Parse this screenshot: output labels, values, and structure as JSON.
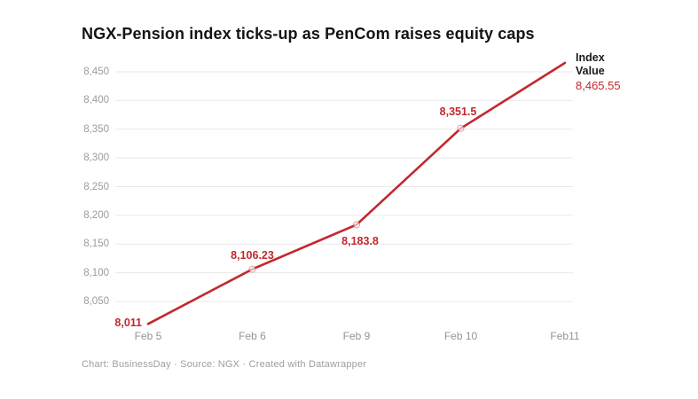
{
  "chart_data": {
    "type": "line",
    "title": "NGX-Pension index ticks-up as PenCom raises equity caps",
    "categories": [
      "Feb 5",
      "Feb 6",
      "Feb 9",
      "Feb 10",
      "Feb11"
    ],
    "series": [
      {
        "name": "Index Value",
        "values": [
          8011,
          8106.23,
          8183.8,
          8351.5,
          8465.55
        ]
      }
    ],
    "point_labels": [
      "8,011",
      "8,106.23",
      "8,183.8",
      "8,351.5",
      ""
    ],
    "point_label_positions": [
      "left",
      "above",
      "below",
      "above",
      "annotation"
    ],
    "y_ticks": [
      {
        "value": 8050,
        "label": "8,050"
      },
      {
        "value": 8100,
        "label": "8,100"
      },
      {
        "value": 8150,
        "label": "8,150"
      },
      {
        "value": 8200,
        "label": "8,200"
      },
      {
        "value": 8250,
        "label": "8,250"
      },
      {
        "value": 8300,
        "label": "8,300"
      },
      {
        "value": 8350,
        "label": "8,350"
      },
      {
        "value": 8400,
        "label": "8,400"
      },
      {
        "value": 8450,
        "label": "8,450"
      }
    ],
    "ylim": [
      8050,
      8450
    ],
    "xlabel": "",
    "ylabel": "",
    "grid": "horizontal",
    "legend_position": "none",
    "annotation": {
      "line1": "Index",
      "line2": "Value",
      "value": "8,465.55"
    },
    "colors": {
      "line": "#c2282e",
      "data_label": "#c2282e",
      "title": "#141414",
      "axis_text": "#9b9b9b",
      "gridline": "#e9e9e9"
    },
    "footer": "Chart: BusinessDay · Source: NGX  · Created with Datawrapper"
  }
}
